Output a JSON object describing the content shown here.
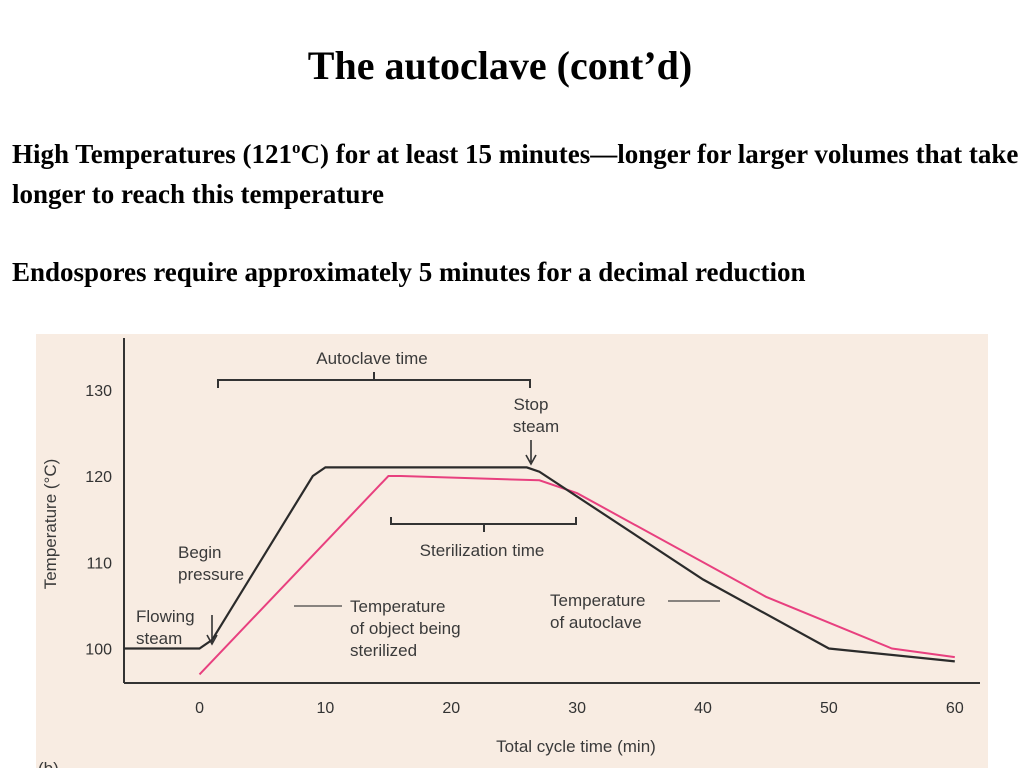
{
  "slide": {
    "title": "The autoclave (cont’d)",
    "para1_text": "High Temperatures (121",
    "para1_sup": "o",
    "para1_rest": "C) for at least 15 minutes—longer for larger volumes that take longer to reach this temperature",
    "para2": "Endospores require approximately 5 minutes for a decimal reduction"
  },
  "colors": {
    "figure_bg": "#f8ece2",
    "autoclave_line": "#2b2b2b",
    "object_line": "#e8407f"
  },
  "chart_data": {
    "type": "line",
    "xlabel": "Total cycle time (min)",
    "ylabel": "Temperature (°C)",
    "xlim": [
      -6,
      62
    ],
    "ylim": [
      96,
      136
    ],
    "x_ticks": [
      "0",
      "10",
      "20",
      "30",
      "40",
      "50",
      "60"
    ],
    "y_ticks": [
      "100",
      "110",
      "120",
      "130"
    ],
    "panel_label": "(b)",
    "grid": false,
    "series": [
      {
        "name": "Temperature of autoclave",
        "color": "#2b2b2b",
        "points": [
          [
            -6,
            100
          ],
          [
            0,
            100
          ],
          [
            1,
            101
          ],
          [
            9,
            120
          ],
          [
            10,
            121
          ],
          [
            26,
            121
          ],
          [
            27,
            120.5
          ],
          [
            40,
            108
          ],
          [
            50,
            100
          ],
          [
            60,
            98.5
          ]
        ]
      },
      {
        "name": "Temperature of object being sterilized",
        "color": "#e8407f",
        "points": [
          [
            0,
            97
          ],
          [
            15,
            120
          ],
          [
            16,
            120
          ],
          [
            27,
            119.5
          ],
          [
            30,
            118
          ],
          [
            45,
            106
          ],
          [
            55,
            100
          ],
          [
            60,
            99
          ]
        ]
      }
    ],
    "annotations": {
      "autoclave_time": "Autoclave time",
      "stop_steam_1": "Stop",
      "stop_steam_2": "steam",
      "sterilization_time": "Sterilization time",
      "begin_pressure_1": "Begin",
      "begin_pressure_2": "pressure",
      "flowing_steam_1": "Flowing",
      "flowing_steam_2": "steam",
      "object_temp_1": "Temperature",
      "object_temp_2": "of object being",
      "object_temp_3": "sterilized",
      "autoclave_temp_1": "Temperature",
      "autoclave_temp_2": "of autoclave"
    }
  }
}
